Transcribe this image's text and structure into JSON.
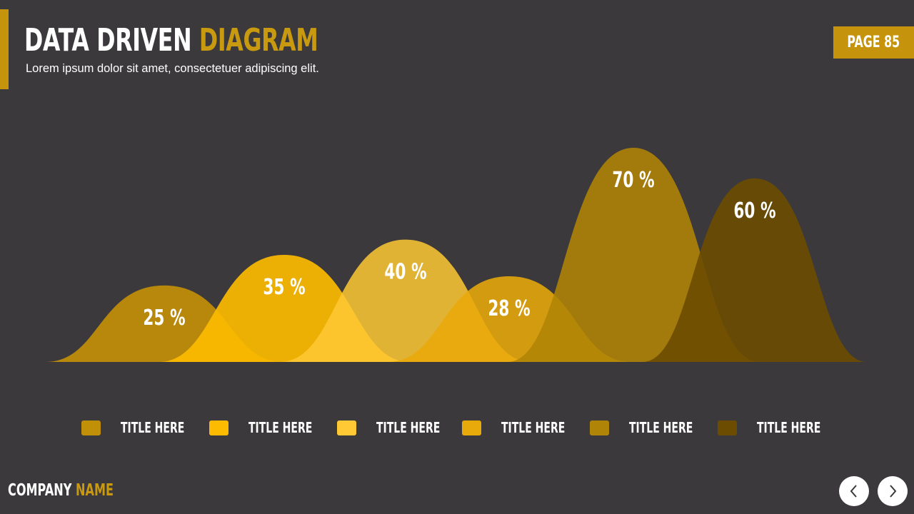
{
  "header": {
    "title_main": "DATA DRIVEN",
    "title_highlight": "DIAGRAM",
    "subtitle": "Lorem ipsum dolor sit amet, consectetuer adipiscing elit.",
    "page_label": "PAGE",
    "page_number": "85"
  },
  "colors": {
    "accent": "#c5930c",
    "background": "#3b393b"
  },
  "chart_data": {
    "type": "area",
    "categories": [
      "TITLE HERE",
      "TITLE HERE",
      "TITLE HERE",
      "TITLE HERE",
      "TITLE HERE",
      "TITLE HERE"
    ],
    "values": [
      25,
      35,
      40,
      28,
      70,
      60
    ],
    "data_labels": [
      "25 %",
      "35 %",
      "40 %",
      "28 %",
      "70 %",
      "60 %"
    ],
    "colors": [
      "#c28f09",
      "#fcbb00",
      "#ffc935",
      "#e8a90a",
      "#b08406",
      "#6b4c00"
    ],
    "ylim": [
      0,
      100
    ],
    "legend_position": "bottom",
    "grid": false
  },
  "footer": {
    "company_main": "COMPANY",
    "company_highlight": "NAME",
    "prev_icon": "chevron-left-icon",
    "next_icon": "chevron-right-icon"
  }
}
